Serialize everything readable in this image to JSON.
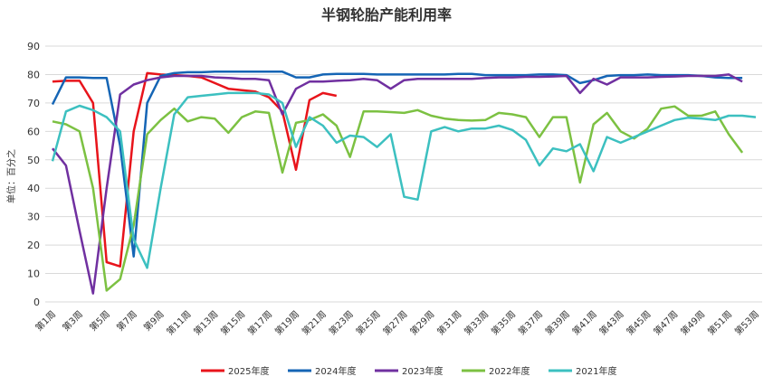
{
  "chart_data": {
    "type": "line",
    "title": "半钢轮胎产能利用率",
    "y_label": "单位：百分之",
    "categories": [
      "第1周",
      null,
      "第3周",
      null,
      "第5周",
      null,
      "第7周",
      null,
      "第9周",
      null,
      "第11周",
      null,
      "第13周",
      null,
      "第15周",
      null,
      "第17周",
      null,
      "第19周",
      null,
      "第21周",
      null,
      "第23周",
      null,
      "第25周",
      null,
      "第27周",
      null,
      "第29周",
      null,
      "第31周",
      null,
      "第33周",
      null,
      "第35周",
      null,
      "第37周",
      null,
      "第39周",
      null,
      "第41周",
      null,
      "第43周",
      null,
      "第45周",
      null,
      "第47周",
      null,
      "第49周",
      null,
      "第51周",
      null,
      "第53周"
    ],
    "ylim": [
      0,
      90
    ],
    "yticks": [
      0,
      10,
      20,
      30,
      40,
      50,
      60,
      70,
      80,
      90
    ],
    "grid": true,
    "legend": "bottom",
    "series": [
      {
        "name": "2025年度",
        "color": "#e8141b",
        "values": [
          77.5,
          77.8,
          77.8,
          70,
          14,
          12.5,
          60,
          80.5,
          80,
          79.8,
          79.5,
          79,
          77,
          75,
          74.5,
          74,
          72,
          67,
          46.5,
          71,
          73.5,
          72.5,
          null,
          null,
          null,
          null,
          null,
          null,
          null,
          null,
          null,
          null,
          null,
          null,
          null,
          null,
          null,
          null,
          null,
          null,
          null,
          null,
          null,
          null,
          null,
          null,
          null,
          null,
          null,
          null,
          null,
          null,
          null
        ]
      },
      {
        "name": "2024年度",
        "color": "#1565b5",
        "values": [
          69.5,
          79,
          79,
          78.8,
          78.8,
          55,
          16,
          70,
          79.5,
          80.5,
          80.8,
          80.8,
          81,
          81,
          81,
          81,
          81,
          81,
          79,
          79,
          80,
          80.2,
          80.2,
          80.2,
          80,
          80,
          80,
          80,
          80,
          80,
          80.2,
          80.2,
          79.8,
          79.8,
          79.8,
          79.8,
          80,
          80,
          79.8,
          77,
          78,
          79.5,
          79.8,
          79.8,
          80,
          79.8,
          79.8,
          79.8,
          79.5,
          79,
          78.8,
          78.8,
          null
        ]
      },
      {
        "name": "2023年度",
        "color": "#7030a0",
        "values": [
          54,
          48,
          25,
          3,
          40,
          73,
          76.5,
          78,
          79,
          79.5,
          79.5,
          79.5,
          79,
          78.8,
          78.5,
          78.5,
          78,
          66,
          75,
          77.5,
          77.5,
          77.8,
          78,
          78.5,
          78,
          75,
          78,
          78.5,
          78.5,
          78.5,
          78.5,
          78.5,
          78.8,
          79,
          79,
          79.2,
          79.2,
          79.3,
          79.5,
          73.5,
          78.5,
          76.5,
          79,
          79,
          79,
          79.2,
          79.3,
          79.5,
          79.5,
          79.5,
          80,
          77.5,
          null
        ]
      },
      {
        "name": "2022年度",
        "color": "#7cc142",
        "values": [
          63.5,
          62.5,
          60,
          40,
          4,
          8,
          27,
          59,
          64,
          68,
          63.5,
          65,
          64.5,
          59.5,
          65,
          67,
          66.5,
          45.5,
          63,
          64,
          66,
          62,
          51,
          67,
          67,
          66.8,
          66.5,
          67.5,
          65.5,
          64.5,
          64,
          63.8,
          64,
          66.5,
          66,
          65,
          58,
          65,
          65,
          42,
          62.5,
          66.5,
          60,
          57.5,
          61,
          68,
          68.8,
          65.5,
          65.5,
          67,
          59,
          52.5,
          null
        ]
      },
      {
        "name": "2021年度",
        "color": "#3cc0c0",
        "values": [
          49.5,
          67,
          69,
          67.5,
          65,
          60,
          22,
          12,
          40,
          66,
          72,
          72.5,
          73,
          73.5,
          73.5,
          73.5,
          73,
          70,
          54.5,
          65,
          62,
          56,
          58.5,
          58,
          54.5,
          59,
          37,
          36,
          60,
          61.5,
          60,
          61,
          61,
          62,
          60.5,
          57,
          48,
          54,
          53,
          55.5,
          46,
          58,
          56,
          58,
          60,
          62,
          64,
          64.8,
          64.5,
          64,
          65.5,
          65.5,
          65
        ]
      }
    ]
  }
}
